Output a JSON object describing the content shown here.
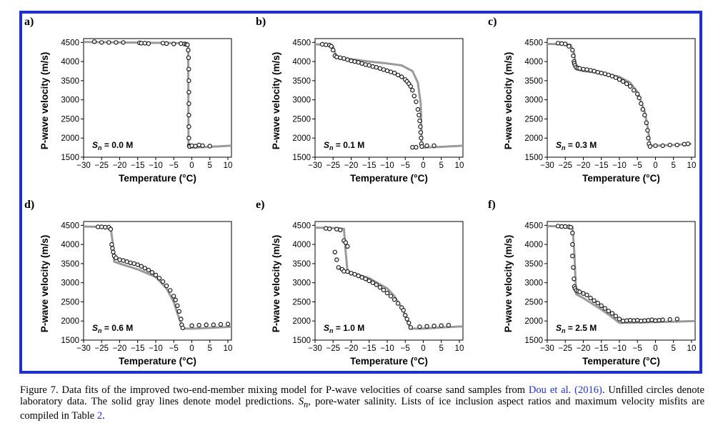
{
  "caption": {
    "part1": "Figure 7.  Data fits of the improved two-end-member mixing model for P-wave velocities of coarse sand samples from ",
    "link1": "Dou et al. (2016)",
    "part2": ". Unfilled circles denote laboratory data. The solid gray lines denote model predictions. ",
    "part3": ", pore-water salinity. Lists of ice inclusion aspect ratios and maximum velocity misfits are compiled in Table ",
    "link2": "2",
    "part4": ".",
    "sn_symbol": "S",
    "sn_sub": "n"
  },
  "colors": {
    "frame": "#1c2fe0",
    "model_line": "#9a9a9a",
    "data_marker": "#1a1a1a",
    "link": "#1c2fe0"
  },
  "chart_data": [
    {
      "panel": "a)",
      "type": "scatter",
      "salinity_label": "= 0.0 M",
      "xlabel": "Temperature (°C)",
      "ylabel": "P-wave velocity (m/s)",
      "xlim": [
        -30,
        11
      ],
      "ylim": [
        1500,
        4600
      ],
      "xticks": [
        -30,
        -25,
        -20,
        -15,
        -10,
        -5,
        0,
        5,
        10
      ],
      "yticks": [
        1500,
        2000,
        2500,
        3000,
        3500,
        4000,
        4500
      ],
      "series": [
        {
          "kind": "model",
          "x": [
            -30,
            -2,
            -1.2,
            -1,
            -0.95,
            -0.9,
            0,
            5,
            11
          ],
          "y": [
            4510,
            4480,
            4470,
            4400,
            2800,
            1750,
            1750,
            1770,
            1800
          ]
        },
        {
          "kind": "data",
          "x": [
            -27,
            -25,
            -23,
            -21,
            -19,
            -14.5,
            -14,
            -13,
            -12,
            -8,
            -7,
            -5,
            -3,
            -2,
            -1.5,
            -1.2,
            -1,
            -0.9,
            -0.85,
            -0.8,
            -0.8,
            -0.8,
            -0.8,
            -0.8,
            -0.8,
            -0.7,
            -0.6,
            0,
            1,
            2,
            3,
            5
          ],
          "y": [
            4520,
            4500,
            4500,
            4500,
            4500,
            4490,
            4480,
            4480,
            4470,
            4480,
            4470,
            4460,
            4470,
            4460,
            4450,
            4440,
            4300,
            4100,
            3800,
            3500,
            3200,
            2900,
            2600,
            2300,
            2000,
            1800,
            1780,
            1800,
            1790,
            1820,
            1800,
            1790
          ]
        }
      ]
    },
    {
      "panel": "b)",
      "type": "scatter",
      "salinity_label": "= 0.1 M",
      "xlabel": "Temperature (°C)",
      "ylabel": "P-wave velocity (m/s)",
      "xlim": [
        -30,
        11
      ],
      "ylim": [
        1500,
        4600
      ],
      "xticks": [
        -30,
        -25,
        -20,
        -15,
        -10,
        -5,
        0,
        5,
        10
      ],
      "yticks": [
        1500,
        2000,
        2500,
        3000,
        3500,
        4000,
        4500
      ],
      "series": [
        {
          "kind": "model",
          "x": [
            -30,
            -26,
            -25,
            -24,
            -20,
            -15,
            -10,
            -6,
            -3,
            -1.5,
            -0.7,
            -0.4,
            0,
            5,
            11
          ],
          "y": [
            4450,
            4440,
            4400,
            4100,
            4060,
            4000,
            3950,
            3900,
            3750,
            3450,
            2900,
            1750,
            1750,
            1770,
            1800
          ]
        },
        {
          "kind": "data",
          "x": [
            -28,
            -27,
            -26,
            -25.5,
            -25,
            -24.5,
            -24,
            -23,
            -22,
            -21,
            -20,
            -19,
            -18,
            -17,
            -16,
            -15,
            -14,
            -13,
            -12,
            -11,
            -10,
            -9,
            -8,
            -7,
            -6,
            -5,
            -4.5,
            -4,
            -3.5,
            -3,
            -2.5,
            -2,
            -1.5,
            -1.2,
            -1,
            -0.8,
            -0.7,
            -0.6,
            -0.5,
            -0.4,
            -3,
            -2,
            1,
            3
          ],
          "y": [
            4450,
            4440,
            4430,
            4400,
            4300,
            4150,
            4120,
            4100,
            4080,
            4050,
            4020,
            4000,
            3980,
            3950,
            3920,
            3900,
            3870,
            3850,
            3820,
            3790,
            3760,
            3730,
            3700,
            3650,
            3600,
            3530,
            3480,
            3420,
            3350,
            3250,
            3100,
            2950,
            2750,
            2600,
            2450,
            2300,
            2150,
            2000,
            1850,
            1780,
            1760,
            1760,
            1800,
            1800
          ]
        }
      ]
    },
    {
      "panel": "c)",
      "type": "scatter",
      "salinity_label": "= 0.3 M",
      "xlabel": "Temperature (°C)",
      "ylabel": "P-wave velocity (m/s)",
      "xlim": [
        -30,
        11
      ],
      "ylim": [
        1500,
        4600
      ],
      "xticks": [
        -30,
        -25,
        -20,
        -15,
        -10,
        -5,
        0,
        5,
        10
      ],
      "yticks": [
        1500,
        2000,
        2500,
        3000,
        3500,
        4000,
        4500
      ],
      "series": [
        {
          "kind": "model",
          "x": [
            -30,
            -25,
            -23.5,
            -22.5,
            -22,
            -20,
            -15,
            -10,
            -7,
            -5,
            -3,
            -2,
            -1.5,
            0,
            5,
            10
          ],
          "y": [
            4460,
            4450,
            4440,
            4200,
            3800,
            3750,
            3700,
            3600,
            3450,
            3200,
            2700,
            2200,
            1800,
            1800,
            1820,
            1850
          ]
        },
        {
          "kind": "data",
          "x": [
            -27,
            -26,
            -25,
            -24,
            -23,
            -22.8,
            -22.6,
            -22.5,
            -22.3,
            -22,
            -21.5,
            -21,
            -20,
            -19,
            -18,
            -17,
            -16,
            -15,
            -14,
            -13,
            -12,
            -11,
            -10,
            -9,
            -8,
            -7,
            -6,
            -5,
            -4.5,
            -4,
            -3.5,
            -3,
            -2.5,
            -2.2,
            -2,
            -1.8,
            -1.5,
            0,
            2,
            4,
            6,
            8,
            9
          ],
          "y": [
            4480,
            4470,
            4460,
            4400,
            4300,
            4150,
            4000,
            3950,
            3900,
            3850,
            3830,
            3820,
            3800,
            3790,
            3770,
            3750,
            3720,
            3700,
            3680,
            3650,
            3620,
            3580,
            3530,
            3480,
            3420,
            3350,
            3250,
            3150,
            3050,
            2900,
            2750,
            2600,
            2400,
            2200,
            2000,
            1850,
            1780,
            1800,
            1800,
            1820,
            1820,
            1840,
            1850
          ]
        }
      ]
    },
    {
      "panel": "d)",
      "type": "scatter",
      "salinity_label": "= 0.6 M",
      "xlabel": "Temperature (°C)",
      "ylabel": "P-wave velocity (m/s)",
      "xlim": [
        -30,
        11
      ],
      "ylim": [
        1500,
        4600
      ],
      "xticks": [
        -30,
        -25,
        -20,
        -15,
        -10,
        -5,
        0,
        5,
        10
      ],
      "yticks": [
        1500,
        2000,
        2500,
        3000,
        3500,
        4000,
        4500
      ],
      "series": [
        {
          "kind": "model",
          "x": [
            -30,
            -25,
            -22.5,
            -22,
            -21.5,
            -20,
            -15,
            -10,
            -7,
            -5,
            -4,
            -3,
            -2.5,
            0,
            5,
            11
          ],
          "y": [
            4470,
            4460,
            4440,
            4100,
            3550,
            3500,
            3350,
            3150,
            2850,
            2500,
            2200,
            1950,
            1800,
            1800,
            1820,
            1850
          ]
        },
        {
          "kind": "data",
          "x": [
            -26,
            -25,
            -24,
            -23,
            -22.5,
            -22.2,
            -22,
            -21.8,
            -21.5,
            -21,
            -20,
            -19,
            -18,
            -17,
            -16,
            -15,
            -14,
            -13,
            -12,
            -11,
            -10,
            -9,
            -8,
            -7,
            -6,
            -5,
            -4.5,
            -4,
            -3.5,
            -3,
            -2.8,
            -2.5,
            0,
            2,
            4,
            6,
            8,
            10
          ],
          "y": [
            4460,
            4460,
            4450,
            4450,
            4400,
            4000,
            3900,
            3800,
            3700,
            3650,
            3600,
            3580,
            3550,
            3520,
            3500,
            3470,
            3430,
            3380,
            3330,
            3270,
            3200,
            3120,
            3030,
            2920,
            2800,
            2650,
            2550,
            2400,
            2250,
            2050,
            1900,
            1820,
            1880,
            1890,
            1900,
            1900,
            1910,
            1920
          ]
        }
      ]
    },
    {
      "panel": "e)",
      "type": "scatter",
      "salinity_label": "= 1.0 M",
      "xlabel": "Temperature (°C)",
      "ylabel": "P-wave velocity (m/s)",
      "xlim": [
        -30,
        11
      ],
      "ylim": [
        1500,
        4600
      ],
      "xticks": [
        -30,
        -25,
        -20,
        -15,
        -10,
        -5,
        0,
        5,
        10
      ],
      "yticks": [
        1500,
        2000,
        2500,
        3000,
        3500,
        4000,
        4500
      ],
      "series": [
        {
          "kind": "model",
          "x": [
            -30,
            -25,
            -22,
            -21.5,
            -21,
            -20,
            -15,
            -10,
            -8,
            -6,
            -5,
            -4,
            -3.5,
            0,
            5,
            11
          ],
          "y": [
            4440,
            4430,
            4410,
            3800,
            3300,
            3270,
            3120,
            2850,
            2650,
            2350,
            2150,
            1900,
            1800,
            1800,
            1830,
            1860
          ]
        },
        {
          "kind": "data",
          "x": [
            -27,
            -26,
            -24,
            -23,
            -22,
            -21.5,
            -21,
            -24.5,
            -24,
            -23.5,
            -22.5,
            -22,
            -21,
            -20,
            -19,
            -18,
            -17,
            -16,
            -15,
            -14,
            -13,
            -12,
            -11,
            -10,
            -9,
            -8,
            -7,
            -6,
            -5.5,
            -5,
            -4.5,
            -4,
            -3.5,
            -1,
            1,
            3,
            5,
            7
          ],
          "y": [
            4420,
            4410,
            4400,
            4380,
            4100,
            4050,
            3950,
            3800,
            3600,
            3400,
            3350,
            3300,
            3290,
            3250,
            3220,
            3180,
            3140,
            3100,
            3050,
            3000,
            2950,
            2880,
            2810,
            2730,
            2650,
            2560,
            2460,
            2350,
            2280,
            2150,
            2050,
            1950,
            1830,
            1850,
            1860,
            1870,
            1880,
            1890
          ]
        }
      ]
    },
    {
      "panel": "f)",
      "type": "scatter",
      "salinity_label": "= 2.5 M",
      "xlabel": "Temperature (°C)",
      "ylabel": "P-wave velocity (m/s)",
      "xlim": [
        -30,
        11
      ],
      "ylim": [
        1500,
        4600
      ],
      "xticks": [
        -30,
        -25,
        -20,
        -15,
        -10,
        -5,
        0,
        5,
        10
      ],
      "yticks": [
        1500,
        2000,
        2500,
        3000,
        3500,
        4000,
        4500
      ],
      "series": [
        {
          "kind": "model",
          "x": [
            -30,
            -25,
            -23,
            -22.5,
            -22,
            -21,
            -20,
            -15,
            -12,
            -10,
            -5,
            0,
            5,
            11
          ],
          "y": [
            4480,
            4470,
            4460,
            3800,
            2700,
            2650,
            2600,
            2300,
            2100,
            1950,
            1960,
            1970,
            1980,
            2000
          ]
        },
        {
          "kind": "data",
          "x": [
            -27,
            -26,
            -25,
            -24,
            -23.5,
            -23,
            -23,
            -23,
            -22.8,
            -22.6,
            -22.5,
            -22.3,
            -22,
            -21.5,
            -21,
            -20,
            -19,
            -18,
            -17,
            -16,
            -15,
            -14,
            -13,
            -12,
            -11,
            -10,
            -9,
            -8,
            -7,
            -6,
            -5,
            -4,
            -3,
            -2,
            -1,
            0,
            1,
            2,
            4,
            6
          ],
          "y": [
            4480,
            4470,
            4470,
            4460,
            4450,
            4300,
            4000,
            3700,
            3400,
            3100,
            2900,
            2850,
            2800,
            2780,
            2760,
            2720,
            2680,
            2600,
            2530,
            2470,
            2400,
            2330,
            2260,
            2200,
            2130,
            2050,
            2000,
            2010,
            2020,
            2010,
            2020,
            2000,
            2010,
            2020,
            2030,
            2010,
            2020,
            2030,
            2040,
            2050
          ]
        }
      ]
    }
  ]
}
